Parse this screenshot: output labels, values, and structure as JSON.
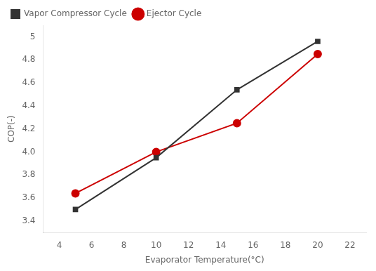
{
  "chart_data": {
    "type": "line",
    "x": [
      5,
      10,
      15,
      20
    ],
    "series": [
      {
        "name": "Vapor Compressor Cycle",
        "color": "#333333",
        "marker": "square",
        "values": [
          3.5,
          3.95,
          4.54,
          4.96
        ]
      },
      {
        "name": "Ejector Cycle",
        "color": "#cc0000",
        "marker": "circle",
        "values": [
          3.64,
          4.0,
          4.25,
          4.85
        ]
      }
    ],
    "xlabel": "Evaporator Temperature(°C)",
    "ylabel": "COP(-)",
    "xlim": [
      3,
      23
    ],
    "ylim": [
      3.3,
      5.1
    ],
    "xticks": [
      4,
      6,
      8,
      10,
      12,
      14,
      16,
      18,
      20,
      22
    ],
    "yticks": [
      3.4,
      3.6,
      3.8,
      {
        "value": 4,
        "label": "4.0"
      },
      4.2,
      4.4,
      4.6,
      4.8,
      5.0
    ],
    "grid": false,
    "legend": "upper left"
  }
}
